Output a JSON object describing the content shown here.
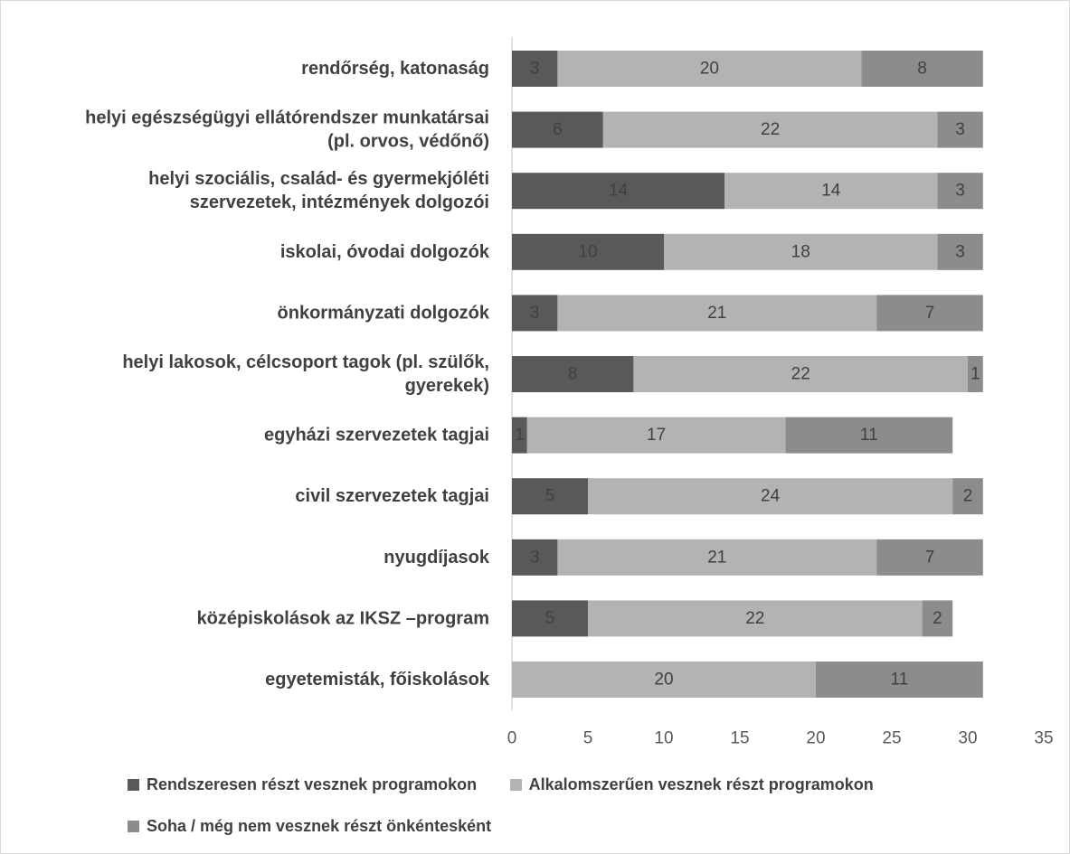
{
  "chart_data": {
    "type": "bar",
    "orientation": "horizontal",
    "stacked": true,
    "categories": [
      "rendőrség, katonaság",
      "helyi egészségügyi ellátórendszer munkatársai (pl. orvos, védőnő)",
      "helyi szociális, család- és gyermekjóléti szervezetek, intézmények dolgozói",
      "iskolai, óvodai dolgozók",
      "önkormányzati dolgozók",
      "helyi lakosok, célcsoport tagok (pl. szülők, gyerekek)",
      "egyházi szervezetek tagjai",
      "civil szervezetek tagjai",
      "nyugdíjasok",
      "középiskolások az IKSZ –program",
      "egyetemisták, főiskolások"
    ],
    "category_lines": [
      [
        "rendőrség, katonaság"
      ],
      [
        "helyi egészségügyi ellátórendszer munkatársai",
        "(pl. orvos, védőnő)"
      ],
      [
        "helyi szociális, család- és gyermekjóléti",
        "szervezetek, intézmények dolgozói"
      ],
      [
        "iskolai, óvodai dolgozók"
      ],
      [
        "önkormányzati dolgozók"
      ],
      [
        "helyi lakosok, célcsoport tagok (pl. szülők,",
        "gyerekek)"
      ],
      [
        "egyházi szervezetek tagjai"
      ],
      [
        "civil szervezetek tagjai"
      ],
      [
        "nyugdíjasok"
      ],
      [
        "középiskolások az IKSZ –program"
      ],
      [
        "egyetemisták, főiskolások"
      ]
    ],
    "series": [
      {
        "name": "Rendszeresen részt vesznek programokon",
        "color": "#595959",
        "values": [
          3,
          6,
          14,
          10,
          3,
          8,
          1,
          5,
          3,
          5,
          0
        ]
      },
      {
        "name": "Alkalomszerűen vesznek részt programokon",
        "color": "#b3b3b3",
        "values": [
          20,
          22,
          14,
          18,
          21,
          22,
          17,
          24,
          21,
          22,
          20
        ]
      },
      {
        "name": "Soha / még nem vesznek részt önkéntesként",
        "color": "#8c8c8c",
        "values": [
          8,
          3,
          3,
          3,
          7,
          1,
          11,
          2,
          7,
          2,
          11
        ]
      }
    ],
    "xlim": [
      0,
      35
    ],
    "xticks": [
      0,
      5,
      10,
      15,
      20,
      25,
      30,
      35
    ],
    "grid": false,
    "data_labels": true,
    "legend_position": "bottom",
    "axis_color": "#d9d9d9"
  }
}
